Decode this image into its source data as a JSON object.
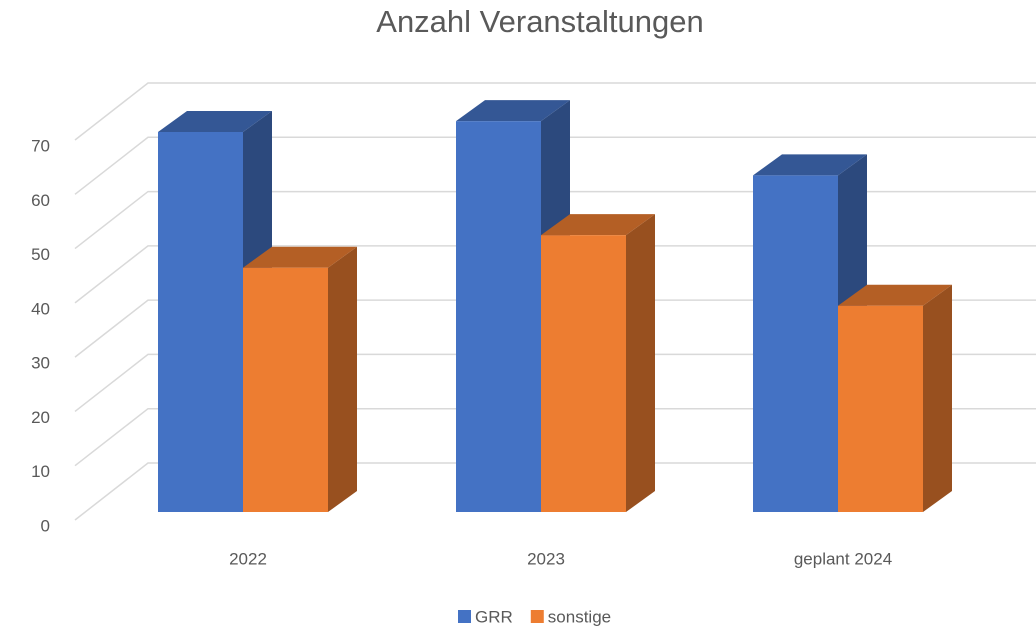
{
  "chart_data": {
    "type": "bar",
    "title": "Anzahl Veranstaltungen",
    "categories": [
      "2022",
      "2023",
      "geplant 2024"
    ],
    "series": [
      {
        "name": "GRR",
        "color": "#4472c4",
        "values": [
          70,
          72,
          62
        ]
      },
      {
        "name": "sonstige",
        "color": "#ed7d31",
        "values": [
          45,
          51,
          38
        ]
      }
    ],
    "ylim": [
      0,
      70
    ],
    "yticks": [
      0,
      10,
      20,
      30,
      40,
      50,
      60,
      70
    ],
    "grid": true,
    "legend": "bottom"
  }
}
